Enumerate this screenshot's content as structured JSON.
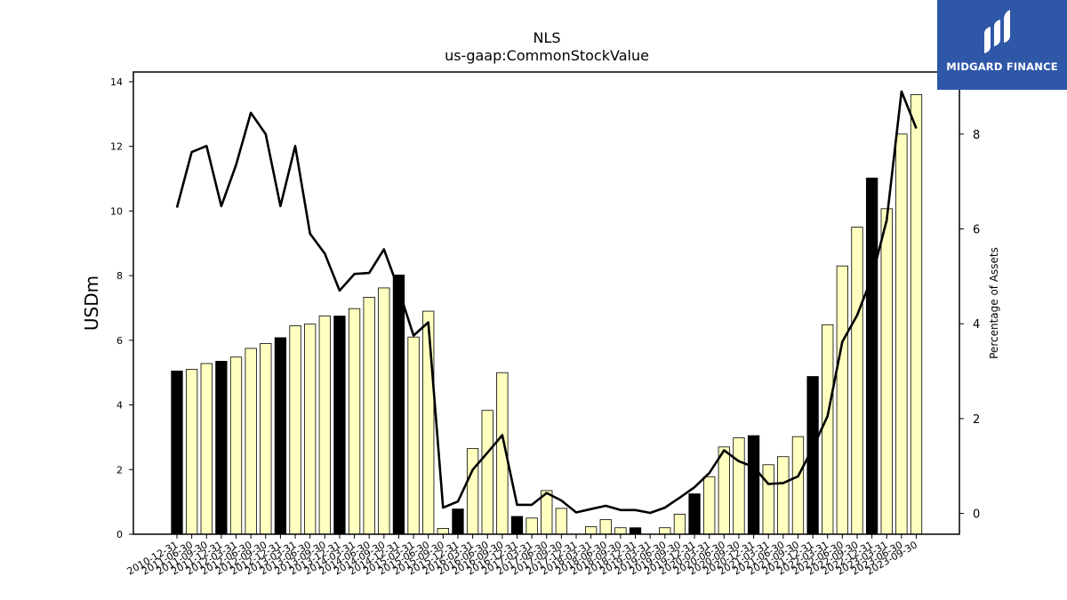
{
  "brand": {
    "name": "MIDGARD FINANCE",
    "bg_color": "#2f57a8"
  },
  "colors": {
    "bar_light": "#ffffc0",
    "bar_dark": "#000000",
    "line": "#000000"
  },
  "chart_data": {
    "type": "bar",
    "title": "NLS",
    "subtitle": "us-gaap:CommonStockValue",
    "ylabel": "USDm",
    "y2label": "Percentage of Assets",
    "ylim": [
      0,
      14.3
    ],
    "y2lim": [
      -0.44,
      9.31
    ],
    "yticks": [
      0,
      2,
      4,
      6,
      8,
      10,
      12,
      14
    ],
    "y2ticks": [
      0,
      2,
      4,
      6,
      8
    ],
    "grid": false,
    "categories": [
      "2010-12-31",
      "2011-06-30",
      "2011-09-30",
      "2011-12-31",
      "2012-03-31",
      "2012-06-30",
      "2012-09-30",
      "2012-12-31",
      "2013-03-31",
      "2013-06-30",
      "2013-09-30",
      "2013-12-31",
      "2014-03-31",
      "2014-06-30",
      "2014-09-30",
      "2014-12-31",
      "2015-03-31",
      "2015-06-30",
      "2015-09-30",
      "2015-12-31",
      "2016-03-31",
      "2016-06-30",
      "2016-09-30",
      "2016-12-31",
      "2017-03-31",
      "2017-06-30",
      "2017-09-30",
      "2017-12-31",
      "2018-03-31",
      "2018-06-30",
      "2018-09-30",
      "2018-12-31",
      "2019-03-31",
      "2019-06-30",
      "2019-09-30",
      "2019-12-31",
      "2020-03-31",
      "2020-06-30",
      "2020-09-30",
      "2020-12-31",
      "2021-03-31",
      "2021-06-30",
      "2021-09-30",
      "2021-12-31",
      "2022-03-31",
      "2022-06-30",
      "2022-09-30",
      "2022-12-31",
      "2023-03-31",
      "2023-06-30",
      "2023-09-30"
    ],
    "series": [
      {
        "kind": "bar",
        "axis": "left",
        "values": [
          5.05,
          5.1,
          5.28,
          5.35,
          5.48,
          5.75,
          5.9,
          6.08,
          6.45,
          6.5,
          6.75,
          6.75,
          6.98,
          7.33,
          7.62,
          8.02,
          6.1,
          6.9,
          0.18,
          0.78,
          2.65,
          3.83,
          5.0,
          0.55,
          0.5,
          1.35,
          0.8,
          0.0,
          0.23,
          0.45,
          0.2,
          0.2,
          0.0,
          0.2,
          0.62,
          1.25,
          1.78,
          2.7,
          2.98,
          3.05,
          2.15,
          2.4,
          3.02,
          4.88,
          6.48,
          8.3,
          9.5,
          11.02,
          10.07,
          12.38,
          13.6
        ],
        "dark": [
          true,
          false,
          false,
          true,
          false,
          false,
          false,
          true,
          false,
          false,
          false,
          true,
          false,
          false,
          false,
          true,
          false,
          false,
          false,
          true,
          false,
          false,
          false,
          true,
          false,
          false,
          false,
          true,
          false,
          false,
          false,
          true,
          false,
          false,
          false,
          true,
          false,
          false,
          false,
          true,
          false,
          false,
          false,
          true,
          false,
          false,
          false,
          true,
          false,
          false,
          false
        ]
      },
      {
        "kind": "line",
        "axis": "right",
        "values": [
          6.45,
          7.62,
          7.75,
          6.48,
          7.35,
          8.45,
          8.0,
          6.48,
          7.75,
          5.9,
          5.48,
          4.7,
          5.05,
          5.07,
          5.57,
          4.72,
          3.75,
          4.03,
          0.12,
          0.25,
          0.92,
          1.28,
          1.65,
          0.18,
          0.18,
          0.43,
          0.27,
          0.02,
          0.09,
          0.16,
          0.07,
          0.07,
          0.01,
          0.12,
          0.33,
          0.55,
          0.85,
          1.33,
          1.1,
          0.98,
          0.62,
          0.64,
          0.78,
          1.38,
          2.05,
          3.62,
          4.18,
          4.98,
          6.18,
          8.9,
          8.12
        ]
      }
    ]
  }
}
